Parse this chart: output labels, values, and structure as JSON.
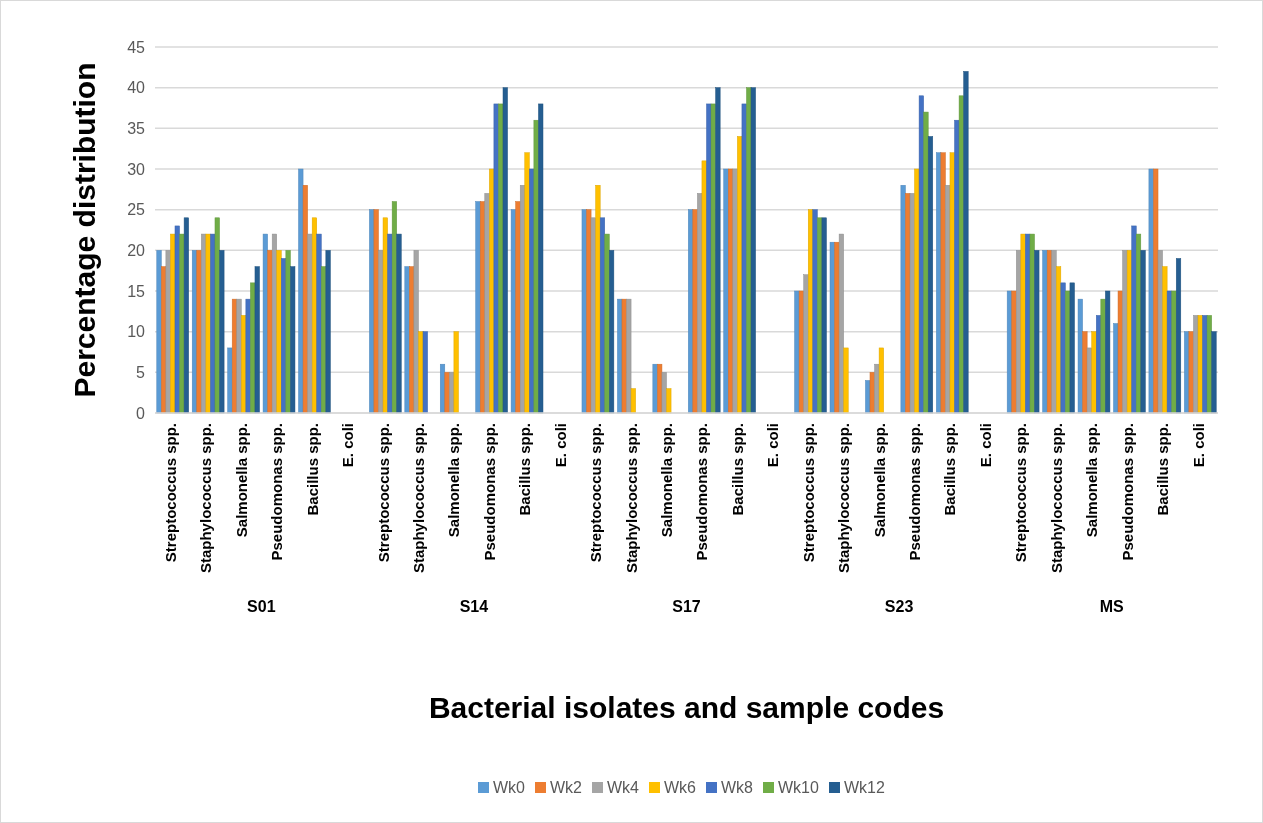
{
  "chart_data": {
    "type": "bar",
    "xlabel": "Bacterial isolates and sample codes",
    "ylabel": "Percentage distribution",
    "categories": [
      "Streptococcus spp.",
      "Staphylococcus spp.",
      "Salmonella spp.",
      "Pseudomonas spp.",
      "Bacillus spp.",
      "E. coli",
      "Streptococcus spp.",
      "Staphylococcus spp.",
      "Salmonella spp.",
      "Pseudomonas spp.",
      "Bacillus spp.",
      "E. coli",
      "Streptococcus spp.",
      "Staphylococcus spp.",
      "Salmonella spp.",
      "Pseudomonas spp.",
      "Bacillus spp.",
      "E. coli",
      "Streptococcus spp.",
      "Staphylococcus spp.",
      "Salmonella spp.",
      "Pseudomonas spp.",
      "Bacillus spp.",
      "E. coli",
      "Streptococcus spp.",
      "Staphylococcus spp.",
      "Salmonella spp.",
      "Pseudomonas spp.",
      "Bacillus spp.",
      "E. coli"
    ],
    "annotations": [
      "S01",
      "S14",
      "S17",
      "S23",
      "MS"
    ],
    "series": [
      {
        "name": "Wk0",
        "color": "#5b9bd5",
        "values": [
          20,
          20,
          8,
          22,
          30,
          0,
          25,
          18,
          6,
          26,
          25,
          0,
          25,
          14,
          6,
          25,
          30,
          0,
          15,
          21,
          4,
          28,
          32,
          0,
          15,
          20,
          14,
          11,
          30,
          10
        ]
      },
      {
        "name": "Wk2",
        "color": "#ed7d31",
        "values": [
          18,
          20,
          14,
          20,
          28,
          0,
          25,
          18,
          5,
          26,
          26,
          0,
          25,
          14,
          6,
          25,
          30,
          0,
          15,
          21,
          5,
          27,
          32,
          0,
          15,
          20,
          10,
          15,
          30,
          10
        ]
      },
      {
        "name": "Wk4",
        "color": "#a5a5a5",
        "values": [
          20,
          22,
          14,
          22,
          22,
          0,
          20,
          20,
          5,
          27,
          28,
          0,
          24,
          14,
          5,
          27,
          30,
          0,
          17,
          22,
          6,
          27,
          28,
          0,
          20,
          20,
          8,
          20,
          20,
          12
        ]
      },
      {
        "name": "Wk6",
        "color": "#ffc000",
        "values": [
          22,
          22,
          12,
          20,
          24,
          0,
          24,
          10,
          10,
          30,
          32,
          0,
          28,
          3,
          3,
          31,
          34,
          0,
          25,
          8,
          8,
          30,
          32,
          0,
          22,
          18,
          10,
          20,
          18,
          12
        ]
      },
      {
        "name": "Wk8",
        "color": "#4472c4",
        "values": [
          23,
          22,
          14,
          19,
          22,
          0,
          22,
          10,
          0,
          38,
          30,
          0,
          24,
          0,
          0,
          38,
          38,
          0,
          25,
          0,
          0,
          39,
          36,
          0,
          22,
          16,
          12,
          23,
          15,
          12
        ]
      },
      {
        "name": "Wk10",
        "color": "#70ad47",
        "values": [
          22,
          24,
          16,
          20,
          18,
          0,
          26,
          0,
          0,
          38,
          36,
          0,
          22,
          0,
          0,
          38,
          40,
          0,
          24,
          0,
          0,
          37,
          39,
          0,
          22,
          15,
          14,
          22,
          15,
          12
        ]
      },
      {
        "name": "Wk12",
        "color": "#255e91",
        "values": [
          24,
          20,
          18,
          18,
          20,
          0,
          22,
          0,
          0,
          40,
          38,
          0,
          20,
          0,
          0,
          40,
          40,
          0,
          24,
          0,
          0,
          34,
          42,
          0,
          20,
          16,
          15,
          20,
          19,
          10
        ]
      }
    ],
    "ylim": [
      0,
      45
    ],
    "yticks": [
      0,
      5,
      10,
      15,
      20,
      25,
      30,
      35,
      40,
      45
    ],
    "grid": "y",
    "legend": "bottom"
  }
}
